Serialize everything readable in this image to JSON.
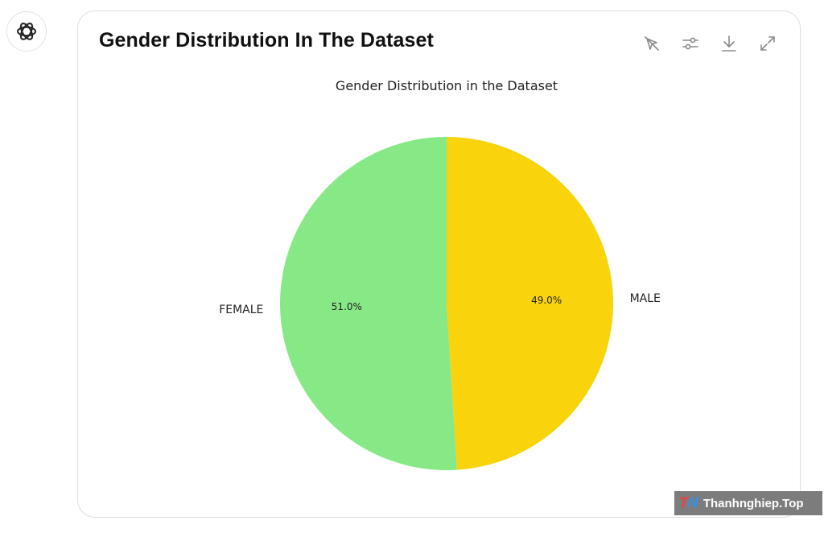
{
  "assistant": {
    "avatar_icon": "openai-logo-icon"
  },
  "card": {
    "title": "Gender Distribution In The Dataset",
    "toolbar": {
      "icons": [
        "interactive-off-icon",
        "settings-sliders-icon",
        "download-icon",
        "expand-icon"
      ]
    }
  },
  "chart_data": {
    "type": "pie",
    "title": "Gender Distribution in the Dataset",
    "categories": [
      "FEMALE",
      "MALE"
    ],
    "values": [
      51.0,
      49.0
    ],
    "value_labels": [
      "51.0%",
      "49.0%"
    ],
    "colors": [
      "#86e986",
      "#f9d30c"
    ],
    "start_angle": 90,
    "direction": "counterclockwise",
    "legend": "none"
  },
  "watermark": {
    "logo": "TN",
    "text": "Thanhnghiep.Top"
  }
}
